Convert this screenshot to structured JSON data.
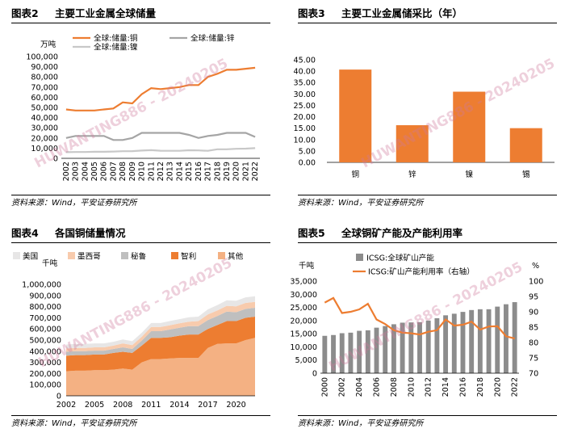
{
  "watermark": "HUWANTING886 - 20240205",
  "colors": {
    "orange": "#ED7D31",
    "gray": "#A5A5A5",
    "lightgray": "#D0D0D0",
    "peach": "#F4B183",
    "salmon": "#F8CBAD",
    "barOrange": "#ED7D31",
    "barGray": "#8C8C8C"
  },
  "chart_data": [
    {
      "id": "fig2",
      "figure_label": "图表2",
      "title": "主要工业金属全球储量",
      "source": "资料来源：Wind，平安证券研究所",
      "type": "line",
      "ylabel": "万吨",
      "ylim": [
        0,
        100000
      ],
      "yticks": [
        "0",
        "10,000",
        "20,000",
        "30,000",
        "40,000",
        "50,000",
        "60,000",
        "70,000",
        "80,000",
        "90,000",
        "100,000"
      ],
      "x": [
        "2002",
        "2003",
        "2004",
        "2005",
        "2006",
        "2007",
        "2008",
        "2009",
        "2010",
        "2011",
        "2012",
        "2013",
        "2014",
        "2015",
        "2016",
        "2017",
        "2018",
        "2019",
        "2020",
        "2021",
        "2022"
      ],
      "legend": [
        "全球:储量:铜",
        "全球:储量:锌",
        "全球:储量:镍"
      ],
      "series": [
        {
          "name": "全球:储量:铜",
          "color": "#ED7D31",
          "values": [
            48000,
            47000,
            47000,
            47000,
            48000,
            49000,
            55000,
            54000,
            63000,
            69000,
            68000,
            69000,
            70000,
            72000,
            72000,
            80000,
            83000,
            87000,
            87000,
            88000,
            89000
          ]
        },
        {
          "name": "全球:储量:锌",
          "color": "#A5A5A5",
          "values": [
            20000,
            22000,
            22000,
            22000,
            22000,
            18000,
            18000,
            20000,
            25000,
            25000,
            25000,
            25000,
            25000,
            23000,
            20000,
            22000,
            23000,
            25000,
            25000,
            25000,
            21000
          ]
        },
        {
          "name": "全球:储量:镍",
          "color": "#C8C8C8",
          "values": [
            6000,
            6200,
            6200,
            6400,
            6400,
            6700,
            7000,
            7100,
            7600,
            8000,
            7500,
            7400,
            7400,
            7900,
            7800,
            7400,
            8900,
            8900,
            9400,
            9500,
            10000
          ]
        }
      ]
    },
    {
      "id": "fig3",
      "figure_label": "图表3",
      "title": "主要工业金属储采比（年）",
      "source": "资料来源：Wind，平安证券研究所",
      "type": "bar",
      "ylim": [
        0,
        45
      ],
      "yticks": [
        "0.00",
        "5.00",
        "10.00",
        "15.00",
        "20.00",
        "25.00",
        "30.00",
        "35.00",
        "40.00",
        "45.00"
      ],
      "categories": [
        "铜",
        "锌",
        "镍",
        "锡"
      ],
      "values": [
        40.7,
        16.3,
        31.0,
        15.0
      ]
    },
    {
      "id": "fig4",
      "figure_label": "图表4",
      "title": "各国铜储量情况",
      "source": "资料来源：Wind，平安证券研究所",
      "type": "area",
      "ylabel": "千吨",
      "ylim": [
        0,
        1000000
      ],
      "yticks": [
        "0",
        "100,000",
        "200,000",
        "300,000",
        "400,000",
        "500,000",
        "600,000",
        "700,000",
        "800,000",
        "900,000",
        "1,000,000"
      ],
      "x": [
        "2002",
        "2003",
        "2004",
        "2005",
        "2006",
        "2007",
        "2008",
        "2009",
        "2010",
        "2011",
        "2012",
        "2013",
        "2014",
        "2015",
        "2016",
        "2017",
        "2018",
        "2019",
        "2020",
        "2021",
        "2022"
      ],
      "xticks": [
        "2002",
        "2005",
        "2008",
        "2011",
        "2014",
        "2017",
        "2020"
      ],
      "legend": [
        "美国",
        "墨西哥",
        "秘鲁",
        "智利",
        "其他"
      ],
      "series": [
        {
          "name": "其他",
          "color": "#F4B183",
          "values": [
            220000,
            225000,
            225000,
            230000,
            230000,
            235000,
            245000,
            235000,
            300000,
            330000,
            330000,
            335000,
            340000,
            340000,
            340000,
            430000,
            465000,
            470000,
            470000,
            500000,
            520000
          ]
        },
        {
          "name": "智利",
          "color": "#ED7D31",
          "values": [
            140000,
            140000,
            140000,
            140000,
            140000,
            150000,
            150000,
            150000,
            150000,
            190000,
            190000,
            190000,
            200000,
            210000,
            210000,
            170000,
            170000,
            200000,
            200000,
            200000,
            190000
          ]
        },
        {
          "name": "秘鲁",
          "color": "#BFBFBF",
          "values": [
            35000,
            35000,
            35000,
            35000,
            35000,
            35000,
            40000,
            35000,
            45000,
            60000,
            60000,
            70000,
            70000,
            75000,
            75000,
            80000,
            80000,
            85000,
            80000,
            80000,
            80000
          ]
        },
        {
          "name": "墨西哥",
          "color": "#F8CBAD",
          "values": [
            30000,
            30000,
            30000,
            30000,
            30000,
            30000,
            35000,
            35000,
            35000,
            38000,
            38000,
            38000,
            40000,
            40000,
            45000,
            50000,
            50000,
            52000,
            52000,
            53000,
            53000
          ]
        },
        {
          "name": "美国",
          "color": "#E7E6E6",
          "values": [
            35000,
            35000,
            35000,
            35000,
            35000,
            35000,
            35000,
            35000,
            35000,
            35000,
            35000,
            38000,
            38000,
            40000,
            40000,
            45000,
            48000,
            50000,
            50000,
            50000,
            50000
          ]
        }
      ]
    },
    {
      "id": "fig5",
      "figure_label": "图表5",
      "title": "全球铜矿产能及产能利用率",
      "source": "资料来源：Wind，平安证券研究所",
      "type": "bar+line",
      "ylabel_left": "千吨",
      "ylabel_right": "%",
      "ylim_left": [
        0,
        35000
      ],
      "ylim_right": [
        70,
        100
      ],
      "yticks_left": [
        "0",
        "5,000",
        "10,000",
        "15,000",
        "20,000",
        "25,000",
        "30,000",
        "35,000"
      ],
      "yticks_right": [
        "70",
        "75",
        "80",
        "85",
        "90",
        "95",
        "100"
      ],
      "x": [
        "2000",
        "2001",
        "2002",
        "2003",
        "2004",
        "2005",
        "2006",
        "2007",
        "2008",
        "2009",
        "2010",
        "2011",
        "2012",
        "2013",
        "2014",
        "2015",
        "2016",
        "2017",
        "2018",
        "2019",
        "2020",
        "2021",
        "2022"
      ],
      "xticks": [
        "2000",
        "2002",
        "2004",
        "2006",
        "2008",
        "2010",
        "2012",
        "2014",
        "2016",
        "2018",
        "2020",
        "2022"
      ],
      "legend": [
        "ICSG:全球矿山产能",
        "ICSG:矿山产能利用率（右轴）"
      ],
      "bars": {
        "name": "ICSG:全球矿山产能",
        "color": "#8C8C8C",
        "values": [
          14200,
          14500,
          15200,
          15400,
          16100,
          16300,
          17300,
          17900,
          18600,
          19200,
          19300,
          19400,
          20000,
          20900,
          22000,
          22600,
          23300,
          24000,
          24300,
          24300,
          25300,
          26200,
          27000
        ]
      },
      "line": {
        "name": "ICSG:矿山产能利用率（右轴）",
        "color": "#ED7D31",
        "values": [
          93.0,
          94.5,
          89.6,
          90.0,
          90.8,
          92.6,
          87.5,
          86.0,
          84.0,
          83.2,
          83.0,
          82.6,
          83.5,
          84.0,
          87.5,
          85.5,
          85.8,
          86.8,
          84.2,
          85.2,
          85.3,
          82.0,
          81.3
        ]
      }
    }
  ]
}
